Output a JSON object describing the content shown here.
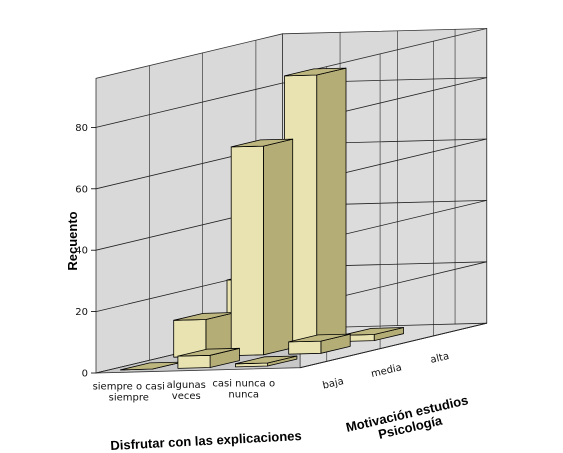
{
  "chart_data": {
    "type": "bar",
    "subtype": "3d-bar",
    "title": "",
    "ylabel": "Recuento",
    "xlabel": "Disfrutar con las explicaciones",
    "zlabel": [
      "Motivación estudios",
      "Psicología"
    ],
    "ylim": [
      0,
      80
    ],
    "yticks": [
      "0",
      "20",
      "40",
      "60",
      "80"
    ],
    "x_categories": [
      [
        "siempre o casi",
        "siempre"
      ],
      [
        "algunas",
        "veces"
      ],
      [
        "casi nunca o",
        "nunca"
      ]
    ],
    "z_categories": [
      "baja",
      "media",
      "alta"
    ],
    "series": [
      {
        "name": "baja",
        "values": [
          0,
          4,
          1
        ]
      },
      {
        "name": "media",
        "values": [
          12,
          68,
          4
        ]
      },
      {
        "name": "alta",
        "values": [
          21,
          87,
          2
        ]
      }
    ],
    "grid": true,
    "colors": {
      "bar_front": "#e8e3b0",
      "bar_side": "#b4ad76",
      "bar_top": "#bdb67f",
      "wall": "#d9d9d9",
      "floor": "#c8c8c8",
      "grid": "#222222"
    }
  }
}
